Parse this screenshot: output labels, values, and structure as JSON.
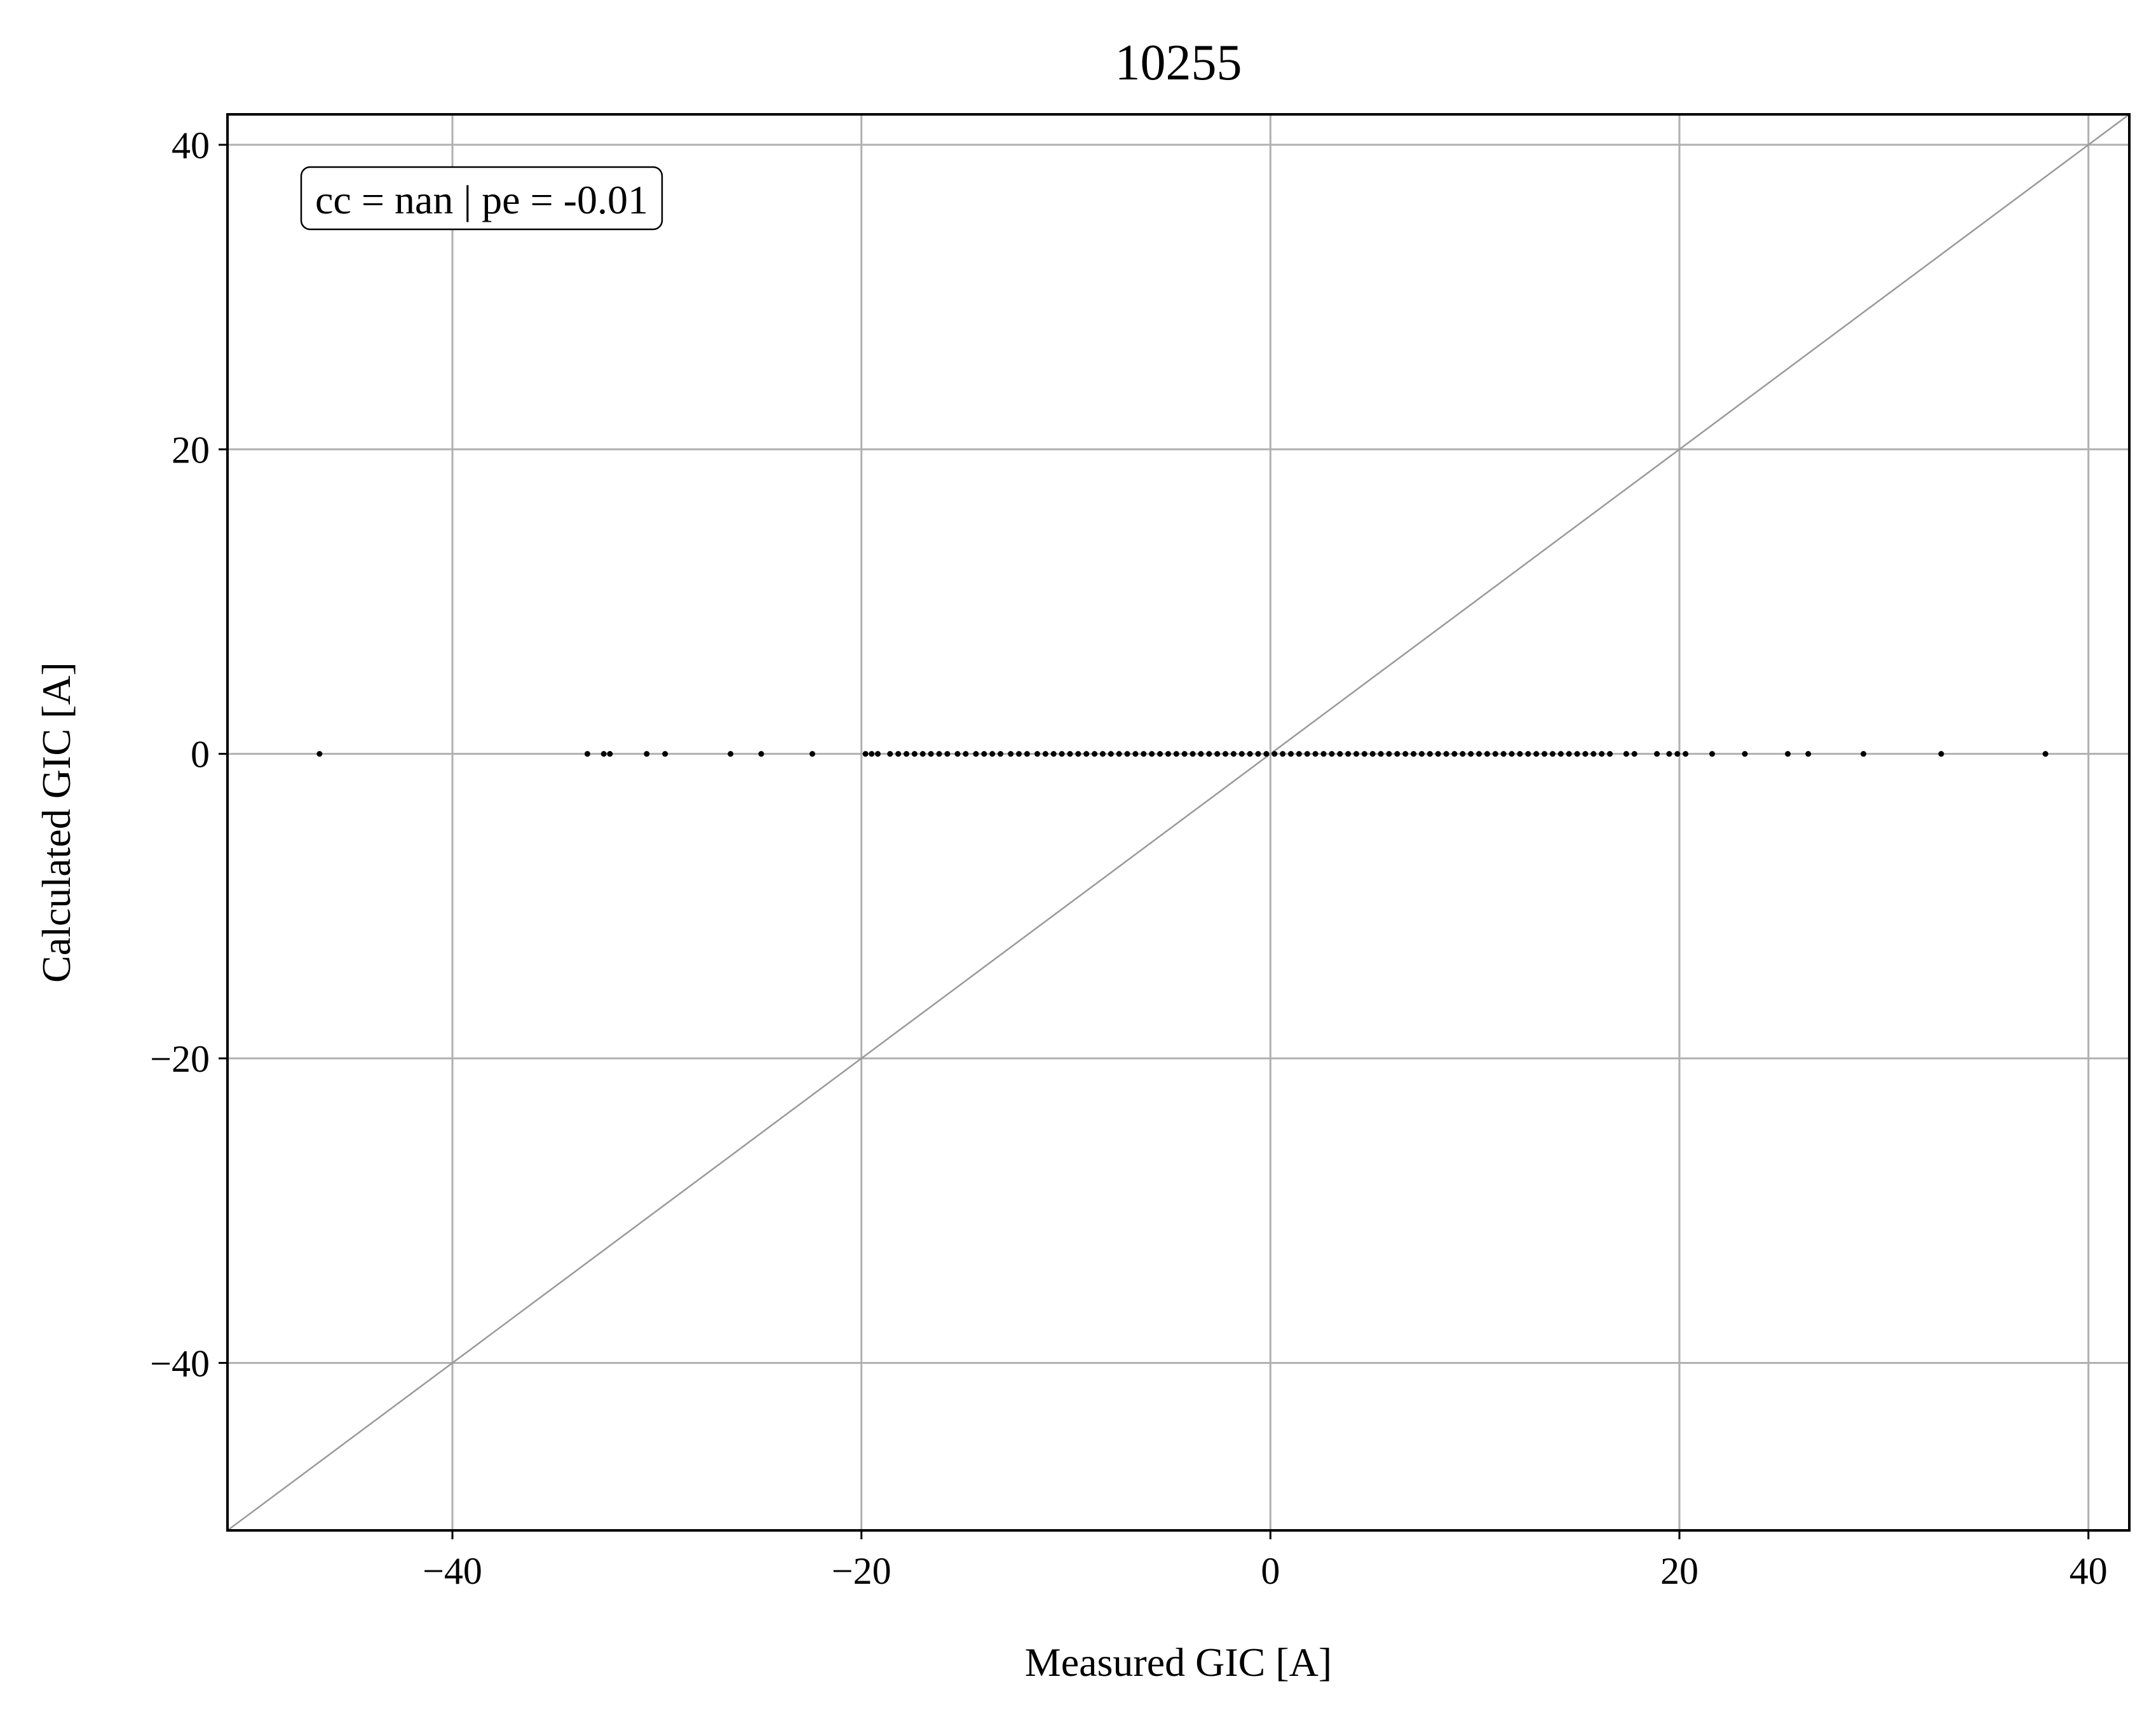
{
  "chart_data": {
    "type": "scatter",
    "title": "10255",
    "xlabel": "Measured GIC [A]",
    "ylabel": "Calculated GIC [A]",
    "xlim": [
      -51,
      42
    ],
    "ylim": [
      -51,
      42
    ],
    "xticks": [
      -40,
      -20,
      0,
      20,
      40
    ],
    "yticks": [
      -40,
      -20,
      0,
      20,
      40
    ],
    "xtick_labels": [
      "−40",
      "−20",
      "0",
      "20",
      "40"
    ],
    "ytick_labels": [
      "−40",
      "−20",
      "0",
      "20",
      "40"
    ],
    "grid": true,
    "reference_line": "y = x",
    "annotation": "cc = nan | pe = -0.01",
    "annotation_placement": "top-left",
    "colors": {
      "points": "#000000",
      "grid": "#b0b0b0",
      "reference_line": "#999999",
      "axes": "#000000"
    },
    "series": [
      {
        "x": [
          -46.5,
          -33.4,
          -32.6,
          -32.3,
          -30.5,
          -29.6,
          -26.4,
          -24.9,
          -22.4,
          -19.8,
          -19.5,
          -19.2,
          -18.6,
          -18.2,
          -17.8,
          -17.4,
          -17.0,
          -16.6,
          -16.2,
          -15.8,
          -15.3,
          -14.9,
          -14.4,
          -14.0,
          -13.6,
          -13.2,
          -12.7,
          -12.3,
          -11.9,
          -11.4,
          -11.0,
          -10.6,
          -10.2,
          -9.8,
          -9.4,
          -9.0,
          -8.6,
          -8.2,
          -7.8,
          -7.4,
          -7.0,
          -6.6,
          -6.2,
          -5.8,
          -5.4,
          -5.0,
          -4.6,
          -4.2,
          -3.8,
          -3.4,
          -3.0,
          -2.6,
          -2.2,
          -1.8,
          -1.4,
          -1.0,
          -0.6,
          -0.2,
          0.2,
          0.6,
          1.0,
          1.4,
          1.8,
          2.2,
          2.6,
          3.0,
          3.4,
          3.8,
          4.2,
          4.6,
          5.0,
          5.4,
          5.8,
          6.2,
          6.6,
          7.0,
          7.4,
          7.8,
          8.2,
          8.6,
          9.0,
          9.4,
          9.8,
          10.2,
          10.6,
          11.0,
          11.4,
          11.8,
          12.2,
          12.6,
          13.0,
          13.4,
          13.8,
          14.2,
          14.6,
          15.0,
          15.4,
          15.8,
          16.2,
          16.6,
          17.4,
          17.8,
          18.9,
          19.5,
          19.9,
          20.3,
          21.6,
          23.2,
          25.3,
          26.3,
          29.0,
          32.8,
          37.9
        ],
        "y": [
          0,
          0,
          0,
          0,
          0,
          0,
          0,
          0,
          0,
          0,
          0,
          0,
          0,
          0,
          0,
          0,
          0,
          0,
          0,
          0,
          0,
          0,
          0,
          0,
          0,
          0,
          0,
          0,
          0,
          0,
          0,
          0,
          0,
          0,
          0,
          0,
          0,
          0,
          0,
          0,
          0,
          0,
          0,
          0,
          0,
          0,
          0,
          0,
          0,
          0,
          0,
          0,
          0,
          0,
          0,
          0,
          0,
          0,
          0,
          0,
          0,
          0,
          0,
          0,
          0,
          0,
          0,
          0,
          0,
          0,
          0,
          0,
          0,
          0,
          0,
          0,
          0,
          0,
          0,
          0,
          0,
          0,
          0,
          0,
          0,
          0,
          0,
          0,
          0,
          0,
          0,
          0,
          0,
          0,
          0,
          0,
          0,
          0,
          0,
          0,
          0,
          0,
          0,
          0,
          0,
          0,
          0,
          0,
          0,
          0,
          0,
          0,
          0
        ]
      }
    ]
  }
}
